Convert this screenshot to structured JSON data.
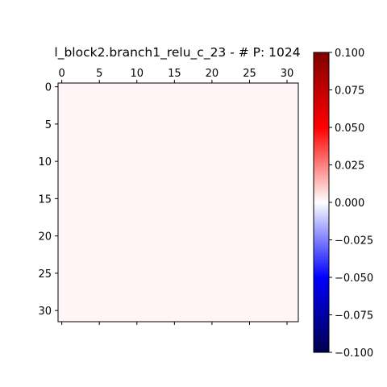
{
  "chart_data": {
    "type": "heatmap",
    "title": "l_block2.branch1_relu_c_23 - # P: 1024",
    "rows": 32,
    "cols": 32,
    "x_ticks": [
      "0",
      "5",
      "10",
      "15",
      "20",
      "25",
      "30"
    ],
    "y_ticks": [
      "0",
      "5",
      "10",
      "15",
      "20",
      "25",
      "30"
    ],
    "x_tick_values": [
      0,
      5,
      10,
      15,
      20,
      25,
      30
    ],
    "y_tick_values": [
      0,
      5,
      10,
      15,
      20,
      25,
      30
    ],
    "xlim": [
      -0.5,
      31.5
    ],
    "ylim": [
      31.5,
      -0.5
    ],
    "value_fill": 0.0,
    "colormap": "seismic",
    "colorbar": {
      "ticks": [
        "0.100",
        "0.075",
        "0.050",
        "0.025",
        "0.000",
        "−0.025",
        "−0.050",
        "−0.075",
        "−0.100"
      ],
      "tick_values": [
        0.1,
        0.075,
        0.05,
        0.025,
        0.0,
        -0.025,
        -0.05,
        -0.075,
        -0.1
      ],
      "vmin": -0.1,
      "vmax": 0.1
    },
    "cell_color": "#fff5f7",
    "x_axis_position": "top",
    "grid": false
  }
}
